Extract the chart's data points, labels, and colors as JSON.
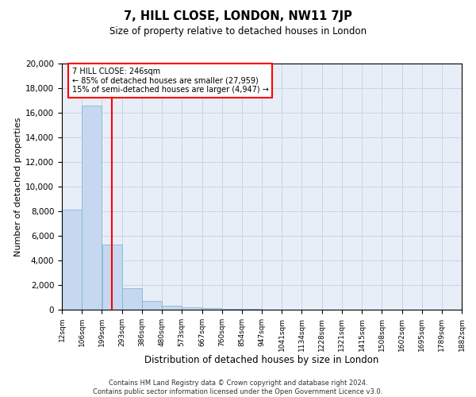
{
  "title": "7, HILL CLOSE, LONDON, NW11 7JP",
  "subtitle": "Size of property relative to detached houses in London",
  "xlabel": "Distribution of detached houses by size in London",
  "ylabel": "Number of detached properties",
  "bar_color": "#c5d8ef",
  "bar_edge_color": "#7aafd4",
  "grid_color": "#c8d4e8",
  "background_color": "#e8eef8",
  "property_line_x": 246,
  "annotation_line1": "7 HILL CLOSE: 246sqm",
  "annotation_line2": "← 85% of detached houses are smaller (27,959)",
  "annotation_line3": "15% of semi-detached houses are larger (4,947) →",
  "footer_line1": "Contains HM Land Registry data © Crown copyright and database right 2024.",
  "footer_line2": "Contains public sector information licensed under the Open Government Licence v3.0.",
  "bin_edges": [
    12,
    106,
    199,
    293,
    386,
    480,
    573,
    667,
    760,
    854,
    947,
    1041,
    1134,
    1228,
    1321,
    1415,
    1508,
    1602,
    1695,
    1789,
    1882
  ],
  "bin_labels": [
    "12sqm",
    "106sqm",
    "199sqm",
    "293sqm",
    "386sqm",
    "480sqm",
    "573sqm",
    "667sqm",
    "760sqm",
    "854sqm",
    "947sqm",
    "1041sqm",
    "1134sqm",
    "1228sqm",
    "1321sqm",
    "1415sqm",
    "1508sqm",
    "1602sqm",
    "1695sqm",
    "1789sqm",
    "1882sqm"
  ],
  "bar_heights": [
    8100,
    16600,
    5300,
    1750,
    700,
    350,
    200,
    130,
    80,
    50,
    30,
    15,
    10,
    8,
    5,
    3,
    2,
    1,
    1,
    0
  ],
  "ylim": [
    0,
    20000
  ],
  "yticks": [
    0,
    2000,
    4000,
    6000,
    8000,
    10000,
    12000,
    14000,
    16000,
    18000,
    20000
  ]
}
